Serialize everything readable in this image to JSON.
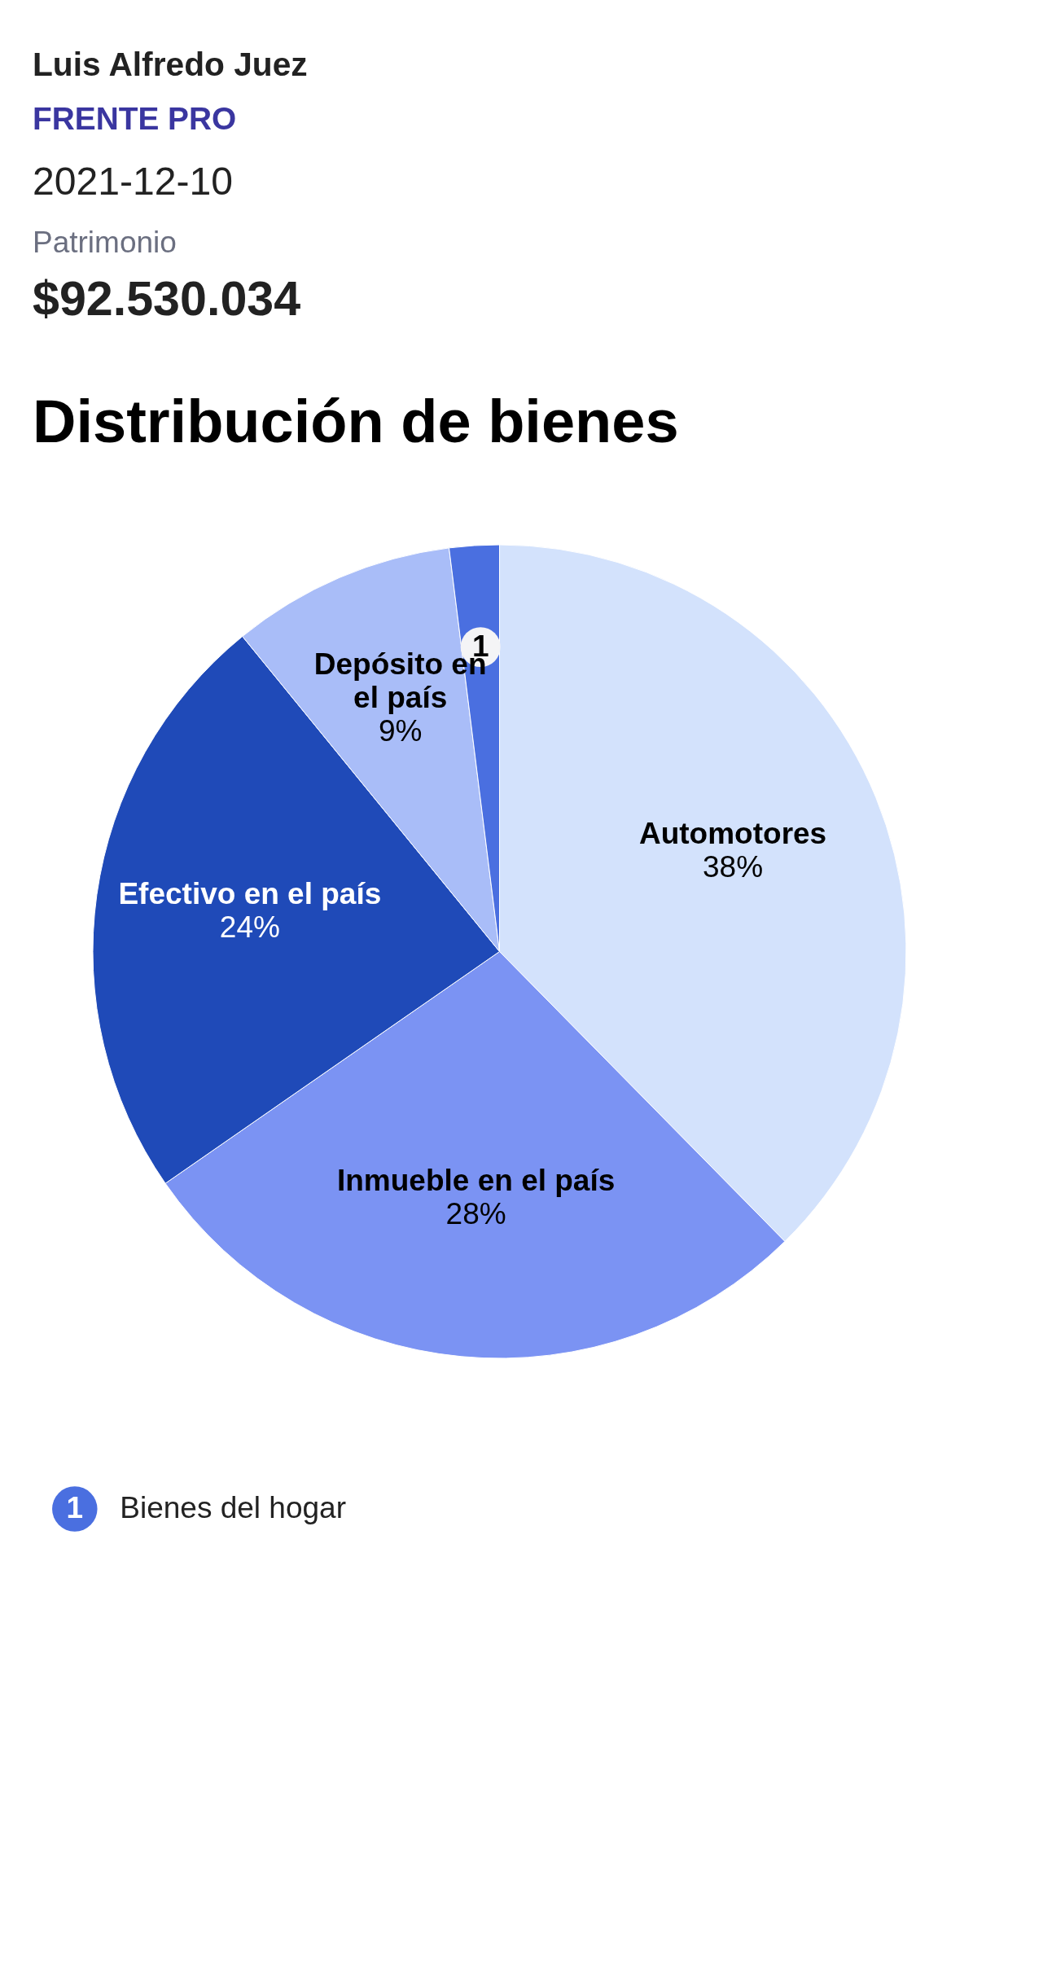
{
  "chart_data": {
    "type": "pie",
    "title": "Distribución de bienes",
    "annotations": [
      "Luis Alfredo Juez",
      "FRENTE PRO",
      "2021-12-10",
      "Patrimonio",
      "$92.530.034",
      {
        "text": "1",
        "x": "Bienes del hogar"
      }
    ],
    "categories": [
      "Automotores",
      "Inmueble en el país",
      "Efectivo en el país",
      "Depósito en el país",
      "Bienes del hogar"
    ],
    "values": [
      38,
      28,
      24,
      9,
      2
    ],
    "value_labels": [
      "38%",
      "28%",
      "24%",
      "9%",
      null
    ],
    "colors": [
      "#d3e2fc",
      "#7b93f3",
      "#1f4ab8",
      "#a9bdf8",
      "#4a6fe0"
    ],
    "legend": "bottom"
  }
}
